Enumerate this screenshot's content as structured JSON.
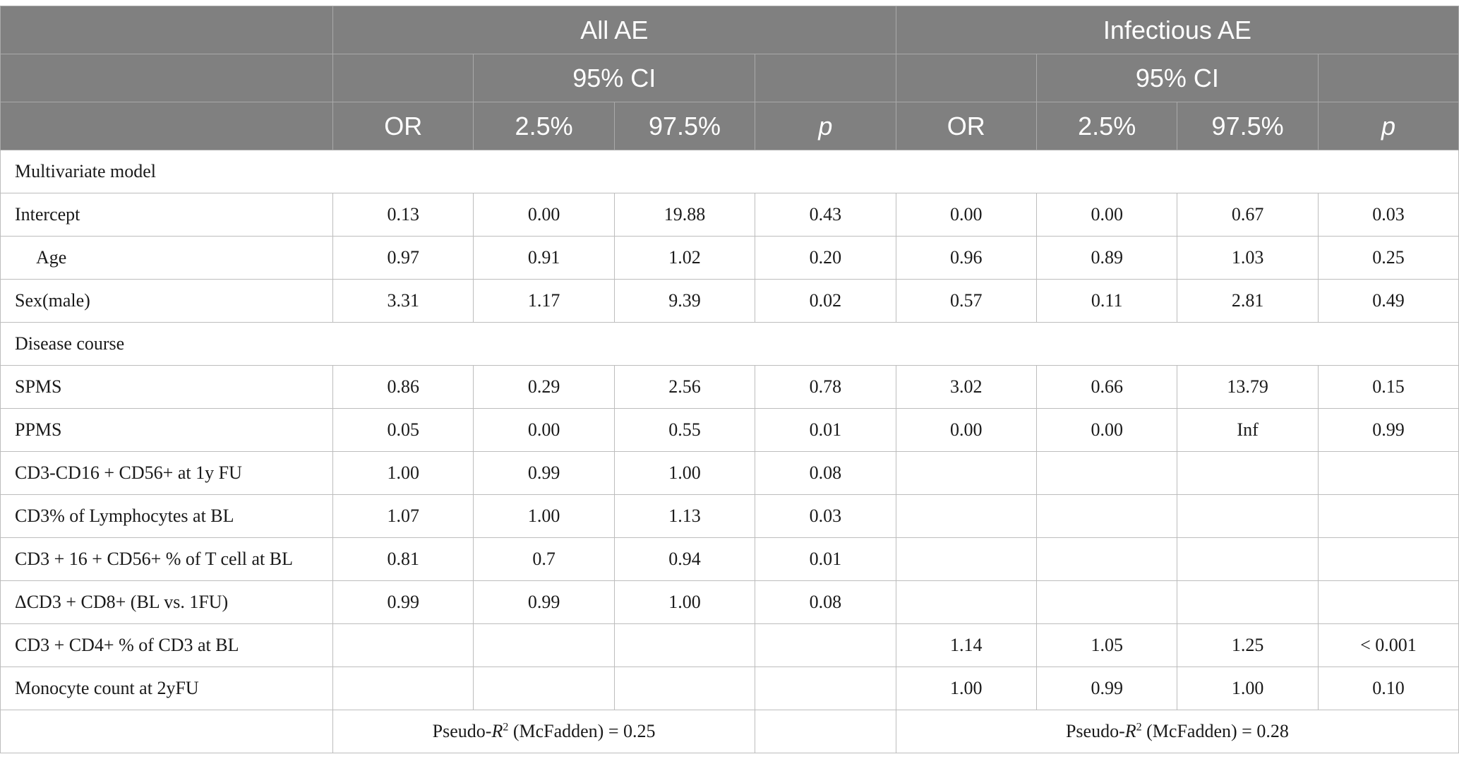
{
  "header": {
    "group1": "All AE",
    "group2": "Infectious AE",
    "ci_label": "95% CI",
    "col_or": "OR",
    "col_lo": "2.5%",
    "col_hi": "97.5%",
    "col_p": "p"
  },
  "sections": {
    "multivariate": "Multivariate model",
    "disease_course": "Disease course"
  },
  "rows": {
    "intercept": {
      "label": "Intercept",
      "v": [
        "0.13",
        "0.00",
        "19.88",
        "0.43",
        "0.00",
        "0.00",
        "0.67",
        "0.03"
      ]
    },
    "age": {
      "label": "Age",
      "v": [
        "0.97",
        "0.91",
        "1.02",
        "0.20",
        "0.96",
        "0.89",
        "1.03",
        "0.25"
      ]
    },
    "sex": {
      "label": "Sex(male)",
      "v": [
        "3.31",
        "1.17",
        "9.39",
        "0.02",
        "0.57",
        "0.11",
        "2.81",
        "0.49"
      ]
    },
    "spms": {
      "label": "SPMS",
      "v": [
        "0.86",
        "0.29",
        "2.56",
        "0.78",
        "3.02",
        "0.66",
        "13.79",
        "0.15"
      ]
    },
    "ppms": {
      "label": "PPMS",
      "v": [
        "0.05",
        "0.00",
        "0.55",
        "0.01",
        "0.00",
        "0.00",
        "Inf",
        "0.99"
      ]
    },
    "cd3cd16": {
      "label": "CD3-CD16 + CD56+ at 1y FU",
      "v": [
        "1.00",
        "0.99",
        "1.00",
        "0.08",
        "",
        "",
        "",
        ""
      ]
    },
    "cd3pct": {
      "label": "CD3% of Lymphocytes at BL",
      "v": [
        "1.07",
        "1.00",
        "1.13",
        "0.03",
        "",
        "",
        "",
        ""
      ]
    },
    "cd316": {
      "label": "CD3 + 16 + CD56+ % of T cell at BL",
      "v": [
        "0.81",
        "0.7",
        "0.94",
        "0.01",
        "",
        "",
        "",
        ""
      ]
    },
    "dcd8": {
      "label": "ΔCD3 + CD8+ (BL vs. 1FU)",
      "v": [
        "0.99",
        "0.99",
        "1.00",
        "0.08",
        "",
        "",
        "",
        ""
      ]
    },
    "cd4": {
      "label": "CD3 + CD4+ % of CD3 at BL",
      "v": [
        "",
        "",
        "",
        "",
        "1.14",
        "1.05",
        "1.25",
        "< 0.001"
      ]
    },
    "mono": {
      "label": "Monocyte count at 2yFU",
      "v": [
        "",
        "",
        "",
        "",
        "1.00",
        "0.99",
        "1.00",
        "0.10"
      ]
    }
  },
  "footer": {
    "pseudo_prefix": "Pseudo-",
    "pseudo_r": "R",
    "pseudo_sup": "2",
    "pseudo_mid": " (McFadden) = ",
    "r2_all": "0.25",
    "r2_inf": "0.28"
  }
}
